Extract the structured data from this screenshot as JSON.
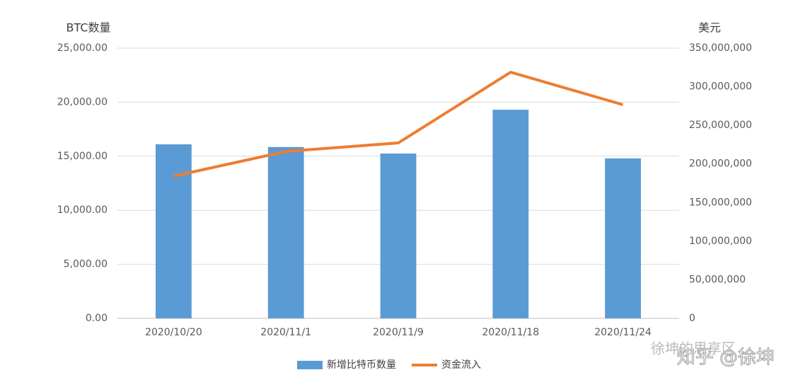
{
  "chart_data": {
    "type": "bar",
    "y_label": "BTC数量",
    "y2_label": "美元",
    "categories": [
      "2020/10/20",
      "2020/11/1",
      "2020/11/9",
      "2020/11/18",
      "2020/11/24"
    ],
    "series": [
      {
        "name": "新增比特币数量",
        "type": "bar",
        "color": "#5b9bd5",
        "values": [
          16100,
          15850,
          15250,
          19300,
          14800
        ]
      },
      {
        "name": "资金流入",
        "type": "line",
        "axis": "y2",
        "color": "#ed7d31",
        "values": [
          184200000,
          216200000,
          227200000,
          318800000,
          276700000
        ]
      }
    ],
    "ylim": [
      0,
      25000
    ],
    "yticks": [
      {
        "value": 0,
        "label": "0.00"
      },
      {
        "value": 5000,
        "label": "5,000.00"
      },
      {
        "value": 10000,
        "label": "10,000.00"
      },
      {
        "value": 15000,
        "label": "15,000.00"
      },
      {
        "value": 20000,
        "label": "20,000.00"
      },
      {
        "value": 25000,
        "label": "25,000.00"
      }
    ],
    "y2lim": [
      0,
      350000000
    ],
    "y2ticks": [
      0,
      {
        "value": 50000000,
        "label": "50,000,000"
      },
      {
        "value": 100000000,
        "label": "100,000,000"
      },
      {
        "value": 150000000,
        "label": "150,000,000"
      },
      {
        "value": 200000000,
        "label": "200,000,000"
      },
      {
        "value": 250000000,
        "label": "250,000,000"
      },
      {
        "value": 300000000,
        "label": "300,000,000"
      },
      {
        "value": 350000000,
        "label": "350,000,000"
      }
    ],
    "grid": true,
    "legend": "bottom",
    "watermark": [
      "徐坤的思享区",
      "知乎 @徐坤"
    ]
  }
}
